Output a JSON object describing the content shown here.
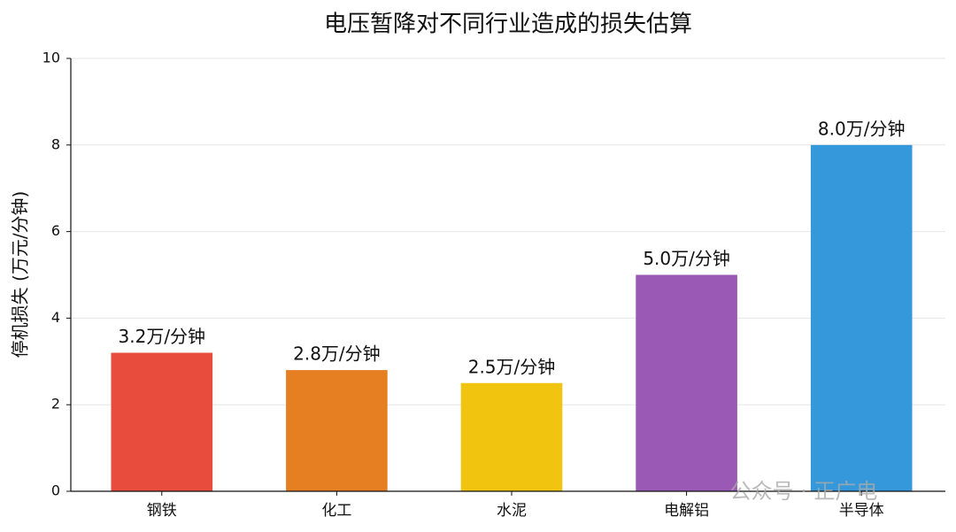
{
  "chart_data": {
    "type": "bar",
    "title": "电压暂降对不同行业造成的损失估算",
    "ylabel": "停机损失 (万元/分钟)",
    "categories": [
      "钢铁",
      "化工",
      "水泥",
      "电解铝",
      "半导体"
    ],
    "values": [
      3.2,
      2.8,
      2.5,
      5.0,
      8.0
    ],
    "value_labels": [
      "3.2万/分钟",
      "2.8万/分钟",
      "2.5万/分钟",
      "5.0万/分钟",
      "8.0万/分钟"
    ],
    "colors": [
      "#e74c3c",
      "#e67e22",
      "#f1c40f",
      "#9b59b6",
      "#3498db"
    ],
    "ylim": [
      0,
      10
    ],
    "yticks": [
      0,
      2,
      4,
      6,
      8,
      10
    ],
    "grid": true,
    "watermark": "公众号 · 正广电"
  }
}
